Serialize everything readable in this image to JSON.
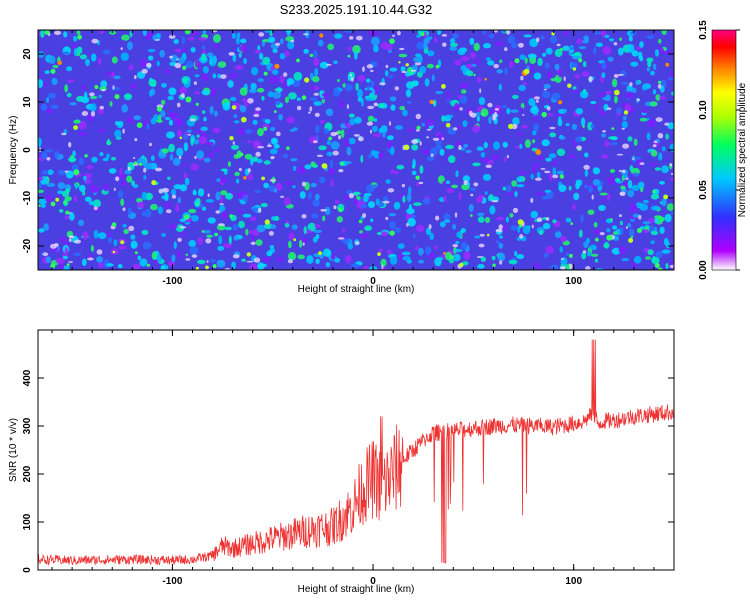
{
  "chart_data": [
    {
      "type": "heatmap",
      "title": "S233.2025.191.10.44.G32",
      "xlabel": "Height of straight line (km)",
      "ylabel": "Frequency (Hz)",
      "xlim": [
        -167,
        150
      ],
      "ylim": [
        -25,
        25
      ],
      "xticks": [
        -100,
        0,
        100
      ],
      "yticks": [
        -20,
        -10,
        0,
        10,
        20
      ],
      "colorbar": {
        "label": "Normalized spectral amplitude",
        "range": [
          0,
          0.15
        ],
        "ticks": [
          "0.00",
          "0.05",
          "0.10",
          "0.15"
        ],
        "colors": [
          "#ffffff",
          "#b000ff",
          "#3030ff",
          "#00c8ff",
          "#00ff60",
          "#b0ff00",
          "#ffff00",
          "#ff8000",
          "#ff0000",
          "#ff0080"
        ]
      }
    },
    {
      "type": "line",
      "xlabel": "Height of straight line (km)",
      "ylabel": "SNR (10 * v/v)",
      "xlim": [
        -167,
        150
      ],
      "ylim": [
        0,
        500
      ],
      "xticks": [
        -100,
        0,
        100
      ],
      "yticks": [
        0,
        100,
        200,
        300,
        400
      ],
      "color": "#ee3333",
      "series": [
        {
          "x": [
            -167,
            -150,
            -120,
            -100,
            -90,
            -80,
            -75,
            -70,
            -60,
            -50,
            -40,
            -30,
            -20,
            -15,
            -10,
            -5,
            0,
            5,
            10,
            15,
            20,
            25,
            30,
            40,
            50,
            60,
            70,
            80,
            90,
            100,
            105,
            108,
            110,
            112,
            115,
            120,
            130,
            140,
            150
          ],
          "y": [
            22,
            20,
            22,
            20,
            22,
            30,
            50,
            45,
            55,
            65,
            75,
            85,
            90,
            110,
            130,
            170,
            190,
            175,
            200,
            230,
            250,
            270,
            285,
            290,
            295,
            300,
            302,
            300,
            298,
            305,
            310,
            320,
            330,
            305,
            310,
            312,
            320,
            325,
            330
          ]
        }
      ]
    }
  ]
}
